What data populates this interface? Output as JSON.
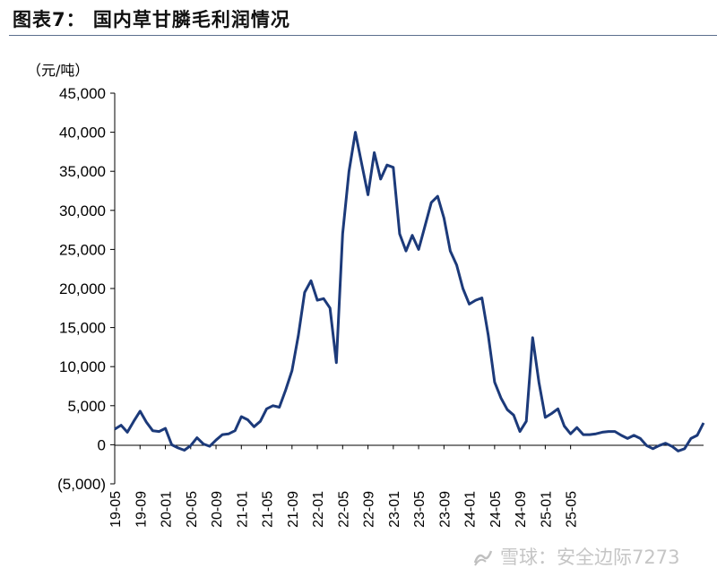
{
  "title": "图表7：  国内草甘膦毛利润情况",
  "watermark": "雪球：安全边际7273",
  "colors": {
    "line": "#1c3a7a",
    "axis": "#000000",
    "rule": "#5b6f8e"
  },
  "chart_data": {
    "type": "line",
    "title": "",
    "ylabel": "（元/吨）",
    "xlabel": "",
    "ylim": [
      -5000,
      45000
    ],
    "yticks": [
      -5000,
      0,
      5000,
      10000,
      15000,
      20000,
      25000,
      30000,
      35000,
      40000,
      45000
    ],
    "ytick_labels": [
      "(5,000)",
      "0",
      "5,000",
      "10,000",
      "15,000",
      "20,000",
      "25,000",
      "30,000",
      "35,000",
      "40,000",
      "45,000"
    ],
    "xtick_labels": [
      "19-05",
      "19-09",
      "20-01",
      "20-05",
      "20-09",
      "21-01",
      "21-05",
      "21-09",
      "22-01",
      "22-05",
      "22-09",
      "23-01",
      "23-05",
      "23-09",
      "24-01",
      "24-05",
      "24-09",
      "25-01",
      "25-05"
    ],
    "x_unit": "month",
    "grid": false,
    "series": [
      {
        "name": "",
        "points": [
          [
            "19-05",
            2000
          ],
          [
            "19-06",
            2500
          ],
          [
            "19-07",
            1600
          ],
          [
            "19-08",
            3000
          ],
          [
            "19-09",
            4300
          ],
          [
            "19-10",
            2900
          ],
          [
            "19-11",
            1800
          ],
          [
            "19-12",
            1700
          ],
          [
            "20-01",
            2100
          ],
          [
            "20-02",
            0
          ],
          [
            "20-03",
            -400
          ],
          [
            "20-04",
            -700
          ],
          [
            "20-05",
            -100
          ],
          [
            "20-06",
            900
          ],
          [
            "20-07",
            100
          ],
          [
            "20-08",
            -200
          ],
          [
            "20-09",
            600
          ],
          [
            "20-10",
            1300
          ],
          [
            "20-11",
            1400
          ],
          [
            "20-12",
            1800
          ],
          [
            "21-01",
            3600
          ],
          [
            "21-02",
            3200
          ],
          [
            "21-03",
            2300
          ],
          [
            "21-04",
            3000
          ],
          [
            "21-05",
            4600
          ],
          [
            "21-06",
            5000
          ],
          [
            "21-07",
            4800
          ],
          [
            "21-08",
            7000
          ],
          [
            "21-09",
            9500
          ],
          [
            "21-10",
            14000
          ],
          [
            "21-11",
            19500
          ],
          [
            "21-12",
            21000
          ],
          [
            "22-01",
            18500
          ],
          [
            "22-02",
            18700
          ],
          [
            "22-03",
            17500
          ],
          [
            "22-04",
            10500
          ],
          [
            "22-05",
            27000
          ],
          [
            "22-06",
            35000
          ],
          [
            "22-07",
            40000
          ],
          [
            "22-08",
            36000
          ],
          [
            "22-09",
            32000
          ],
          [
            "22-10",
            37400
          ],
          [
            "22-11",
            34000
          ],
          [
            "22-12",
            35800
          ],
          [
            "23-01",
            35500
          ],
          [
            "23-02",
            27000
          ],
          [
            "23-03",
            24800
          ],
          [
            "23-04",
            26800
          ],
          [
            "23-05",
            25000
          ],
          [
            "23-06",
            28000
          ],
          [
            "23-07",
            31000
          ],
          [
            "23-08",
            31800
          ],
          [
            "23-09",
            29000
          ],
          [
            "23-10",
            24800
          ],
          [
            "23-11",
            23000
          ],
          [
            "23-12",
            20000
          ],
          [
            "24-01",
            18000
          ],
          [
            "24-02",
            18500
          ],
          [
            "24-03",
            18800
          ],
          [
            "24-04",
            14000
          ],
          [
            "24-05",
            8000
          ],
          [
            "24-06",
            6000
          ],
          [
            "24-07",
            4500
          ],
          [
            "24-08",
            3800
          ],
          [
            "24-09",
            1700
          ],
          [
            "24-10",
            3000
          ],
          [
            "24-11",
            13700
          ],
          [
            "24-12",
            8000
          ],
          [
            "25-01",
            3500
          ],
          [
            "25-02",
            4000
          ],
          [
            "25-03",
            4600
          ],
          [
            "25-04",
            2400
          ],
          [
            "25-05",
            1400
          ],
          [
            "25-06",
            2200
          ],
          [
            "25-07",
            1300
          ],
          [
            "25-08",
            1300
          ],
          [
            "25-09",
            1400
          ],
          [
            "25-10",
            1600
          ],
          [
            "25-11",
            1700
          ],
          [
            "25-12",
            1700
          ],
          [
            "26-01",
            1200
          ],
          [
            "26-02",
            800
          ],
          [
            "26-03",
            1200
          ],
          [
            "26-04",
            800
          ],
          [
            "26-05",
            -100
          ],
          [
            "26-06",
            -500
          ],
          [
            "26-07",
            -100
          ],
          [
            "26-08",
            200
          ],
          [
            "26-09",
            -200
          ],
          [
            "26-10",
            -800
          ],
          [
            "26-11",
            -500
          ],
          [
            "26-12",
            800
          ],
          [
            "27-01",
            1200
          ],
          [
            "27-02",
            2800
          ]
        ]
      }
    ]
  }
}
